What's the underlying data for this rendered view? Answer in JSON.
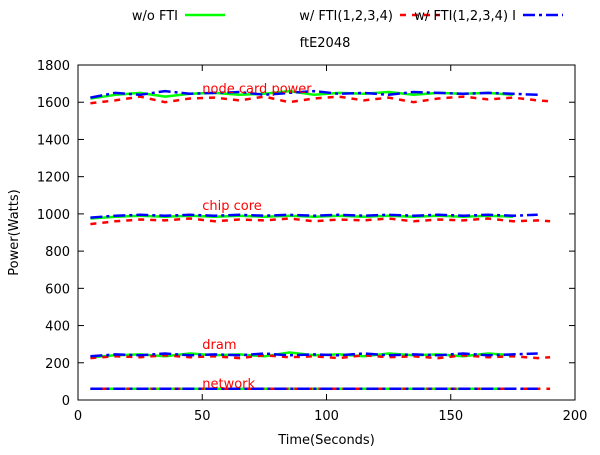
{
  "chart_data": {
    "type": "line",
    "title": "ftE2048",
    "xlabel": "Time(Seconds)",
    "ylabel": "Power(Watts)",
    "xlim": [
      0,
      200
    ],
    "ylim": [
      0,
      1800
    ],
    "x_ticks": [
      0,
      50,
      100,
      150,
      200
    ],
    "y_ticks": [
      0,
      200,
      400,
      600,
      800,
      1000,
      1200,
      1400,
      1600,
      1800
    ],
    "grid": false,
    "legend_position": "top",
    "legend": [
      {
        "label": "w/o FTI",
        "color": "#00ff00",
        "style": "solid"
      },
      {
        "label": "w/ FTI(1,2,3,4)",
        "color": "#ff0000",
        "style": "dashed"
      },
      {
        "label": "w/ FTI(1,2,3,4) I",
        "color": "#0000ff",
        "style": "dash-dot"
      }
    ],
    "annotations": [
      {
        "text": "node card power",
        "x": 50,
        "y": 1650,
        "color": "#ff0000"
      },
      {
        "text": "chip core",
        "x": 50,
        "y": 1020,
        "color": "#ff0000"
      },
      {
        "text": "dram",
        "x": 50,
        "y": 275,
        "color": "#ff0000"
      },
      {
        "text": "network",
        "x": 50,
        "y": 65,
        "color": "#ff0000"
      }
    ],
    "series": [
      {
        "name": "w/o FTI",
        "group": "node card power",
        "color": "#00ff00",
        "x": [
          5,
          15,
          25,
          35,
          45,
          55,
          65,
          75,
          85,
          95,
          105,
          115,
          125,
          135,
          145,
          155,
          165,
          175
        ],
        "y": [
          1620,
          1640,
          1650,
          1630,
          1645,
          1650,
          1640,
          1645,
          1660,
          1640,
          1650,
          1645,
          1655,
          1640,
          1650,
          1645,
          1650,
          1640
        ]
      },
      {
        "name": "w/ FTI(1,2,3,4)",
        "group": "node card power",
        "color": "#ff0000",
        "x": [
          5,
          15,
          25,
          35,
          45,
          55,
          65,
          75,
          85,
          95,
          105,
          115,
          125,
          135,
          145,
          155,
          165,
          175,
          185,
          190
        ],
        "y": [
          1595,
          1610,
          1630,
          1600,
          1620,
          1625,
          1610,
          1630,
          1600,
          1620,
          1630,
          1610,
          1625,
          1600,
          1620,
          1630,
          1615,
          1625,
          1610,
          1605
        ]
      },
      {
        "name": "w/ FTI(1,2,3,4) I",
        "group": "node card power",
        "color": "#0000ff",
        "x": [
          5,
          15,
          25,
          35,
          45,
          55,
          65,
          75,
          85,
          95,
          105,
          115,
          125,
          135,
          145,
          155,
          165,
          175,
          185
        ],
        "y": [
          1625,
          1650,
          1640,
          1660,
          1645,
          1650,
          1655,
          1640,
          1650,
          1660,
          1645,
          1650,
          1640,
          1655,
          1650,
          1645,
          1650,
          1645,
          1640
        ]
      },
      {
        "name": "w/o FTI",
        "group": "chip core",
        "color": "#00ff00",
        "x": [
          5,
          15,
          25,
          35,
          45,
          55,
          65,
          75,
          85,
          95,
          105,
          115,
          125,
          135,
          145,
          155,
          165,
          175
        ],
        "y": [
          975,
          985,
          990,
          985,
          990,
          985,
          990,
          985,
          990,
          985,
          990,
          985,
          990,
          985,
          990,
          985,
          990,
          985
        ]
      },
      {
        "name": "w/ FTI(1,2,3,4)",
        "group": "chip core",
        "color": "#ff0000",
        "x": [
          5,
          15,
          25,
          35,
          45,
          55,
          65,
          75,
          85,
          95,
          105,
          115,
          125,
          135,
          145,
          155,
          165,
          175,
          185,
          190
        ],
        "y": [
          945,
          960,
          970,
          965,
          975,
          960,
          970,
          965,
          975,
          960,
          970,
          965,
          975,
          960,
          970,
          965,
          975,
          960,
          965,
          960
        ]
      },
      {
        "name": "w/ FTI(1,2,3,4) I",
        "group": "chip core",
        "color": "#0000ff",
        "x": [
          5,
          15,
          25,
          35,
          45,
          55,
          65,
          75,
          85,
          95,
          105,
          115,
          125,
          135,
          145,
          155,
          165,
          175,
          185
        ],
        "y": [
          980,
          990,
          995,
          990,
          995,
          990,
          995,
          990,
          995,
          990,
          995,
          990,
          995,
          990,
          995,
          990,
          995,
          990,
          995
        ]
      },
      {
        "name": "w/o FTI",
        "group": "dram",
        "color": "#00ff00",
        "x": [
          5,
          15,
          25,
          35,
          45,
          55,
          65,
          75,
          85,
          95,
          105,
          115,
          125,
          135,
          145,
          155,
          165,
          175
        ],
        "y": [
          230,
          240,
          245,
          235,
          250,
          240,
          245,
          235,
          255,
          240,
          245,
          235,
          250,
          240,
          245,
          235,
          250,
          240
        ]
      },
      {
        "name": "w/ FTI(1,2,3,4)",
        "group": "dram",
        "color": "#ff0000",
        "x": [
          5,
          15,
          25,
          35,
          45,
          55,
          65,
          75,
          85,
          95,
          105,
          115,
          125,
          135,
          145,
          155,
          165,
          175,
          185,
          190
        ],
        "y": [
          225,
          235,
          230,
          240,
          230,
          235,
          225,
          240,
          230,
          235,
          225,
          240,
          230,
          235,
          225,
          240,
          230,
          235,
          225,
          230
        ]
      },
      {
        "name": "w/ FTI(1,2,3,4) I",
        "group": "dram",
        "color": "#0000ff",
        "x": [
          5,
          15,
          25,
          35,
          45,
          55,
          65,
          75,
          85,
          95,
          105,
          115,
          125,
          135,
          145,
          155,
          165,
          175,
          185
        ],
        "y": [
          235,
          245,
          240,
          250,
          240,
          245,
          240,
          250,
          240,
          245,
          240,
          250,
          240,
          245,
          240,
          250,
          240,
          245,
          250
        ]
      },
      {
        "name": "w/o FTI",
        "group": "network",
        "color": "#00ff00",
        "x": [
          5,
          15,
          25,
          35,
          45,
          55,
          65,
          75,
          85,
          95,
          105,
          115,
          125,
          135,
          145,
          155,
          165,
          175
        ],
        "y": [
          60,
          60,
          60,
          60,
          60,
          60,
          60,
          60,
          60,
          60,
          60,
          60,
          60,
          60,
          60,
          60,
          60,
          60
        ]
      },
      {
        "name": "w/ FTI(1,2,3,4)",
        "group": "network",
        "color": "#ff0000",
        "x": [
          5,
          15,
          25,
          35,
          45,
          55,
          65,
          75,
          85,
          95,
          105,
          115,
          125,
          135,
          145,
          155,
          165,
          175,
          185,
          190
        ],
        "y": [
          60,
          60,
          60,
          60,
          60,
          60,
          60,
          60,
          60,
          60,
          60,
          60,
          60,
          60,
          60,
          60,
          60,
          60,
          60,
          60
        ]
      },
      {
        "name": "w/ FTI(1,2,3,4) I",
        "group": "network",
        "color": "#0000ff",
        "x": [
          5,
          15,
          25,
          35,
          45,
          55,
          65,
          75,
          85,
          95,
          105,
          115,
          125,
          135,
          145,
          155,
          165,
          175,
          185
        ],
        "y": [
          60,
          60,
          60,
          60,
          60,
          60,
          60,
          60,
          60,
          60,
          60,
          60,
          60,
          60,
          60,
          60,
          60,
          60,
          60
        ]
      }
    ]
  }
}
